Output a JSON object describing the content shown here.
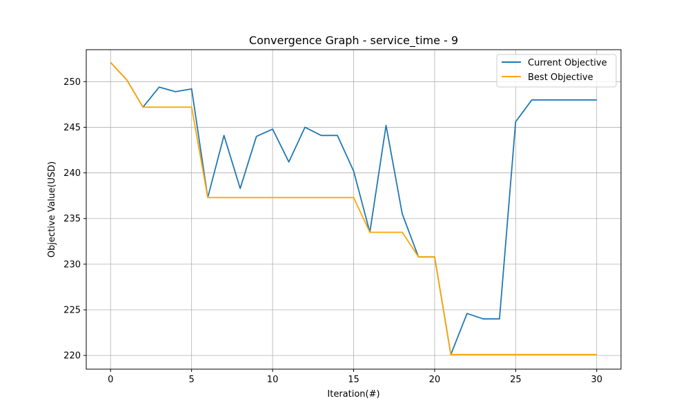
{
  "chart_data": {
    "type": "line",
    "title": "Convergence Graph - service_time - 9",
    "xlabel": "Iteration(#)",
    "ylabel": "Objective Value(USD)",
    "xlim": [
      -1.5,
      31.5
    ],
    "ylim": [
      218.5,
      253.5
    ],
    "xticks": [
      0,
      5,
      10,
      15,
      20,
      25,
      30
    ],
    "yticks": [
      220,
      225,
      230,
      235,
      240,
      245,
      250
    ],
    "grid": true,
    "legend_position": "top-right",
    "x": [
      0,
      1,
      2,
      3,
      4,
      5,
      6,
      7,
      8,
      9,
      10,
      11,
      12,
      13,
      14,
      15,
      16,
      17,
      18,
      19,
      20,
      21,
      22,
      23,
      24,
      25,
      26,
      27,
      28,
      29,
      30
    ],
    "series": [
      {
        "name": "Current Objective",
        "color": "#1f77b4",
        "values": [
          252.1,
          250.2,
          247.2,
          249.4,
          248.9,
          249.2,
          237.3,
          244.1,
          238.3,
          244.0,
          244.8,
          241.2,
          245.0,
          244.1,
          244.1,
          240.2,
          233.5,
          245.2,
          235.5,
          230.8,
          230.8,
          220.1,
          224.6,
          224.0,
          224.0,
          245.6,
          248.0,
          248.0,
          248.0,
          248.0,
          248.0
        ]
      },
      {
        "name": "Best Objective",
        "color": "#ffa500",
        "values": [
          252.1,
          250.2,
          247.2,
          247.2,
          247.2,
          247.2,
          237.3,
          237.3,
          237.3,
          237.3,
          237.3,
          237.3,
          237.3,
          237.3,
          237.3,
          237.3,
          233.5,
          233.5,
          233.5,
          230.8,
          230.8,
          220.1,
          220.1,
          220.1,
          220.1,
          220.1,
          220.1,
          220.1,
          220.1,
          220.1,
          220.1
        ]
      }
    ]
  }
}
